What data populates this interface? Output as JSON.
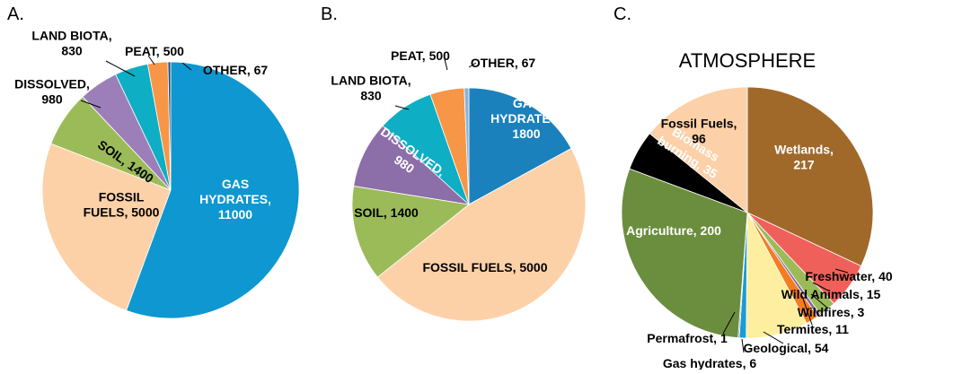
{
  "chart_data": [
    {
      "type": "pie",
      "label": "A.",
      "values": [
        11000,
        5000,
        1400,
        980,
        830,
        500,
        67
      ],
      "value_labels": [
        "GAS HYDRATES, 11000",
        "FOSSIL FUELS, 5000",
        "SOIL, 1400",
        "DISSOLVED, 980",
        "LAND BIOTA, 830",
        "PEAT, 500",
        "OTHER, 67"
      ],
      "colors": [
        "#0e97d0",
        "#fdd1a8",
        "#9bbb59",
        "#9c7fb8",
        "#0eaec4",
        "#f79646",
        "#1f4e79"
      ]
    },
    {
      "type": "pie",
      "label": "B.",
      "values": [
        1800,
        5000,
        1400,
        980,
        830,
        500,
        67
      ],
      "value_labels": [
        "GAS HYDRATES, 1800",
        "FOSSIL FUELS, 5000",
        "SOIL, 1400",
        "DISSOLVED, 980",
        "LAND BIOTA, 830",
        "PEAT, 500",
        "OTHER, 67"
      ],
      "colors": [
        "#1b81bd",
        "#fdd1a8",
        "#9bbb59",
        "#8c6ea8",
        "#0eaec4",
        "#f79646",
        "#8ab4d8"
      ]
    },
    {
      "type": "pie",
      "label": "C.",
      "title": "ATMOSPHERE",
      "values": [
        217,
        40,
        15,
        3,
        11,
        54,
        6,
        1,
        200,
        35,
        96
      ],
      "value_labels": [
        "Wetlands, 217",
        "Freshwater, 40",
        "Wild Animals, 15",
        "Wildfires, 3",
        "Termites, 11",
        "Geological, 54",
        "Gas hydrates, 6",
        "Permafrost, 1",
        "Agriculture, 200",
        "Biomass burning, 35",
        "Fossil Fuels, 96"
      ],
      "colors": [
        "#a0692a",
        "#ef605a",
        "#9bbb59",
        "#8064a2",
        "#f47c20",
        "#fdeea0",
        "#1b9ad6",
        "#1f5c99",
        "#6b8e3e",
        "#000000",
        "#fcd0a8"
      ]
    }
  ]
}
